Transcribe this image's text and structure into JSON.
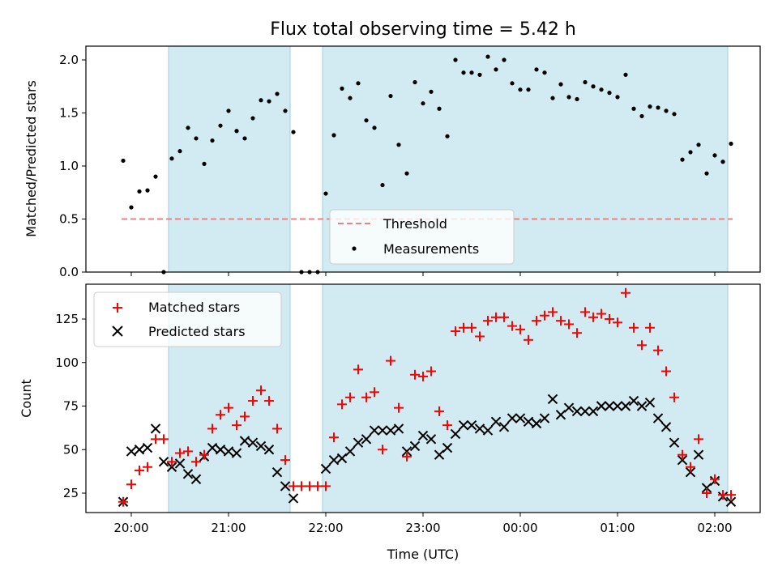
{
  "chart_data": {
    "title": "Flux total observing time = 5.42 h",
    "xlabel": "Time (UTC)",
    "x_unit": "time (UTC, 20:00 to 02:00 next day)",
    "x_ticks": [
      "20:00",
      "21:00",
      "22:00",
      "23:00",
      "00:00",
      "01:00",
      "02:00"
    ],
    "shaded_intervals": [
      [
        "20:23",
        "21:38"
      ],
      [
        "21:58",
        "02:08"
      ]
    ],
    "shade_color": "#add8e6",
    "panels": [
      {
        "type": "scatter",
        "ylabel": "Matched/Predicted stars",
        "ylim": [
          0,
          2.1
        ],
        "y_ticks": [
          "0.0",
          "0.5",
          "1.0",
          "1.5",
          "2.0"
        ],
        "threshold": {
          "name": "Threshold",
          "value": 0.5,
          "x_range": [
            "19:55",
            "02:10"
          ],
          "color": "#f08080"
        },
        "legend_location": "lower center",
        "series": [
          {
            "name": "Measurements",
            "color": "#000000",
            "points": [
              [
                "19:55",
                1.05
              ],
              [
                "20:00",
                0.61
              ],
              [
                "20:05",
                0.76
              ],
              [
                "20:10",
                0.77
              ],
              [
                "20:15",
                0.9
              ],
              [
                "20:20",
                0.0
              ],
              [
                "20:25",
                1.07
              ],
              [
                "20:30",
                1.14
              ],
              [
                "20:35",
                1.36
              ],
              [
                "20:40",
                1.26
              ],
              [
                "20:45",
                1.02
              ],
              [
                "20:50",
                1.24
              ],
              [
                "20:55",
                1.38
              ],
              [
                "21:00",
                1.52
              ],
              [
                "21:05",
                1.33
              ],
              [
                "21:10",
                1.26
              ],
              [
                "21:15",
                1.45
              ],
              [
                "21:20",
                1.62
              ],
              [
                "21:25",
                1.61
              ],
              [
                "21:30",
                1.68
              ],
              [
                "21:35",
                1.52
              ],
              [
                "21:40",
                1.32
              ],
              [
                "21:45",
                0.0
              ],
              [
                "21:50",
                0.0
              ],
              [
                "21:55",
                0.0
              ],
              [
                "22:00",
                0.74
              ],
              [
                "22:05",
                1.29
              ],
              [
                "22:10",
                1.73
              ],
              [
                "22:15",
                1.64
              ],
              [
                "22:20",
                1.78
              ],
              [
                "22:25",
                1.43
              ],
              [
                "22:30",
                1.36
              ],
              [
                "22:35",
                0.82
              ],
              [
                "22:40",
                1.66
              ],
              [
                "22:45",
                1.2
              ],
              [
                "22:50",
                0.93
              ],
              [
                "22:55",
                1.79
              ],
              [
                "23:00",
                1.59
              ],
              [
                "23:05",
                1.7
              ],
              [
                "23:10",
                1.54
              ],
              [
                "23:15",
                1.28
              ],
              [
                "23:20",
                2.0
              ],
              [
                "23:25",
                1.88
              ],
              [
                "23:30",
                1.88
              ],
              [
                "23:35",
                1.86
              ],
              [
                "23:40",
                2.03
              ],
              [
                "23:45",
                1.91
              ],
              [
                "23:50",
                2.0
              ],
              [
                "23:55",
                1.78
              ],
              [
                "00:00",
                1.72
              ],
              [
                "00:05",
                1.72
              ],
              [
                "00:10",
                1.91
              ],
              [
                "00:15",
                1.88
              ],
              [
                "00:20",
                1.64
              ],
              [
                "00:25",
                1.77
              ],
              [
                "00:30",
                1.65
              ],
              [
                "00:35",
                1.63
              ],
              [
                "00:40",
                1.79
              ],
              [
                "00:45",
                1.75
              ],
              [
                "00:50",
                1.72
              ],
              [
                "00:55",
                1.69
              ],
              [
                "01:00",
                1.65
              ],
              [
                "01:05",
                1.86
              ],
              [
                "01:10",
                1.54
              ],
              [
                "01:15",
                1.47
              ],
              [
                "01:20",
                1.56
              ],
              [
                "01:25",
                1.55
              ],
              [
                "01:30",
                1.52
              ],
              [
                "01:35",
                1.49
              ],
              [
                "01:40",
                1.06
              ],
              [
                "01:45",
                1.13
              ],
              [
                "01:50",
                1.2
              ],
              [
                "01:55",
                0.93
              ],
              [
                "02:00",
                1.1
              ],
              [
                "02:05",
                1.04
              ],
              [
                "02:10",
                1.21
              ]
            ]
          }
        ]
      },
      {
        "type": "scatter",
        "ylabel": "Count",
        "ylim": [
          13,
          145
        ],
        "y_ticks": [
          "25",
          "50",
          "75",
          "100",
          "125"
        ],
        "legend_location": "upper left",
        "series": [
          {
            "name": "Matched stars",
            "marker": "+",
            "color": "#ff0000",
            "points": [
              [
                "19:55",
                20
              ],
              [
                "20:00",
                30
              ],
              [
                "20:05",
                38
              ],
              [
                "20:10",
                40
              ],
              [
                "20:15",
                56
              ],
              [
                "20:20",
                56
              ],
              [
                "20:25",
                43
              ],
              [
                "20:30",
                48
              ],
              [
                "20:35",
                49
              ],
              [
                "20:40",
                43
              ],
              [
                "20:45",
                47
              ],
              [
                "20:50",
                62
              ],
              [
                "20:55",
                70
              ],
              [
                "21:00",
                74
              ],
              [
                "21:05",
                64
              ],
              [
                "21:10",
                69
              ],
              [
                "21:15",
                78
              ],
              [
                "21:20",
                84
              ],
              [
                "21:25",
                78
              ],
              [
                "21:30",
                62
              ],
              [
                "21:35",
                44
              ],
              [
                "21:40",
                29
              ],
              [
                "21:45",
                29
              ],
              [
                "21:50",
                29
              ],
              [
                "21:55",
                29
              ],
              [
                "22:00",
                29
              ],
              [
                "22:05",
                57
              ],
              [
                "22:10",
                76
              ],
              [
                "22:15",
                80
              ],
              [
                "22:20",
                96
              ],
              [
                "22:25",
                80
              ],
              [
                "22:30",
                83
              ],
              [
                "22:35",
                50
              ],
              [
                "22:40",
                101
              ],
              [
                "22:45",
                74
              ],
              [
                "22:50",
                46
              ],
              [
                "22:55",
                93
              ],
              [
                "23:00",
                92
              ],
              [
                "23:05",
                95
              ],
              [
                "23:10",
                72
              ],
              [
                "23:15",
                64
              ],
              [
                "23:20",
                118
              ],
              [
                "23:25",
                120
              ],
              [
                "23:30",
                120
              ],
              [
                "23:35",
                115
              ],
              [
                "23:40",
                124
              ],
              [
                "23:45",
                126
              ],
              [
                "23:50",
                126
              ],
              [
                "23:55",
                121
              ],
              [
                "00:00",
                119
              ],
              [
                "00:05",
                113
              ],
              [
                "00:10",
                124
              ],
              [
                "00:15",
                127
              ],
              [
                "00:20",
                129
              ],
              [
                "00:25",
                124
              ],
              [
                "00:30",
                122
              ],
              [
                "00:35",
                117
              ],
              [
                "00:40",
                129
              ],
              [
                "00:45",
                126
              ],
              [
                "00:50",
                128
              ],
              [
                "00:55",
                125
              ],
              [
                "01:00",
                123
              ],
              [
                "01:05",
                140
              ],
              [
                "01:10",
                120
              ],
              [
                "01:15",
                110
              ],
              [
                "01:20",
                120
              ],
              [
                "01:25",
                107
              ],
              [
                "01:30",
                95
              ],
              [
                "01:35",
                80
              ],
              [
                "01:40",
                47
              ],
              [
                "01:45",
                40
              ],
              [
                "01:50",
                56
              ],
              [
                "01:55",
                25
              ],
              [
                "02:00",
                33
              ],
              [
                "02:05",
                24
              ],
              [
                "02:10",
                24
              ]
            ]
          },
          {
            "name": "Predicted stars",
            "marker": "x",
            "color": "#000000",
            "points": [
              [
                "19:55",
                20
              ],
              [
                "20:00",
                49
              ],
              [
                "20:05",
                50
              ],
              [
                "20:10",
                51
              ],
              [
                "20:15",
                62
              ],
              [
                "20:20",
                43
              ],
              [
                "20:25",
                40
              ],
              [
                "20:30",
                42
              ],
              [
                "20:35",
                36
              ],
              [
                "20:40",
                33
              ],
              [
                "20:45",
                46
              ],
              [
                "20:50",
                51
              ],
              [
                "20:55",
                50
              ],
              [
                "21:00",
                49
              ],
              [
                "21:05",
                48
              ],
              [
                "21:10",
                55
              ],
              [
                "21:15",
                54
              ],
              [
                "21:20",
                52
              ],
              [
                "21:25",
                50
              ],
              [
                "21:30",
                37
              ],
              [
                "21:35",
                29
              ],
              [
                "21:40",
                22
              ],
              [
                "21:55",
                null
              ],
              [
                "22:00",
                39
              ],
              [
                "22:05",
                44
              ],
              [
                "22:10",
                45
              ],
              [
                "22:15",
                49
              ],
              [
                "22:20",
                54
              ],
              [
                "22:25",
                56
              ],
              [
                "22:30",
                61
              ],
              [
                "22:35",
                61
              ],
              [
                "22:40",
                61
              ],
              [
                "22:45",
                62
              ],
              [
                "22:50",
                49
              ],
              [
                "22:55",
                52
              ],
              [
                "23:00",
                58
              ],
              [
                "23:05",
                56
              ],
              [
                "23:10",
                47
              ],
              [
                "23:15",
                51
              ],
              [
                "23:20",
                59
              ],
              [
                "23:25",
                64
              ],
              [
                "23:30",
                64
              ],
              [
                "23:35",
                62
              ],
              [
                "23:40",
                61
              ],
              [
                "23:45",
                66
              ],
              [
                "23:50",
                63
              ],
              [
                "23:55",
                68
              ],
              [
                "00:00",
                68
              ],
              [
                "00:05",
                66
              ],
              [
                "00:10",
                65
              ],
              [
                "00:15",
                68
              ],
              [
                "00:20",
                79
              ],
              [
                "00:25",
                70
              ],
              [
                "00:30",
                74
              ],
              [
                "00:35",
                72
              ],
              [
                "00:40",
                72
              ],
              [
                "00:45",
                72
              ],
              [
                "00:50",
                75
              ],
              [
                "00:55",
                75
              ],
              [
                "01:00",
                75
              ],
              [
                "01:05",
                75
              ],
              [
                "01:10",
                78
              ],
              [
                "01:15",
                75
              ],
              [
                "01:20",
                77
              ],
              [
                "01:25",
                68
              ],
              [
                "01:30",
                63
              ],
              [
                "01:35",
                54
              ],
              [
                "01:40",
                44
              ],
              [
                "01:45",
                37
              ],
              [
                "01:50",
                47
              ],
              [
                "01:55",
                28
              ],
              [
                "02:00",
                32
              ],
              [
                "02:05",
                23
              ],
              [
                "02:10",
                20
              ]
            ]
          }
        ]
      }
    ]
  }
}
